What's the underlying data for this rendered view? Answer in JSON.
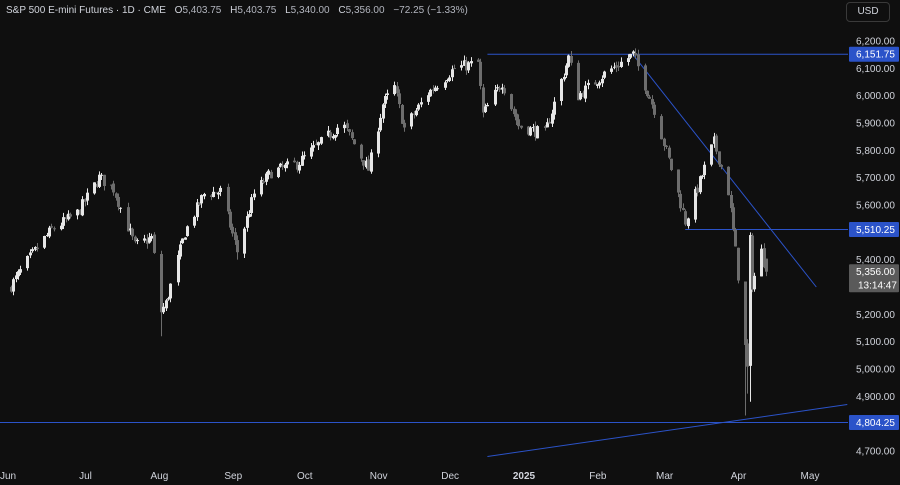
{
  "header": {
    "instrument": "S&P 500 E-mini Futures · 1D · CME",
    "o_label": "O",
    "o_value": "5,403.75",
    "h_label": "H",
    "h_value": "5,403.75",
    "l_label": "L",
    "l_value": "5,340.00",
    "c_label": "C",
    "c_value": "5,356.00",
    "change": "−72.25 (−1.33%)"
  },
  "currency_button": "USD",
  "countdown": "13:14:47",
  "colors": {
    "background": "#0f0f0f",
    "candle_up": "#e6e6e6",
    "candle_down": "#6d6d6d",
    "line": "#2b53c9",
    "label_blue": "#2b53c9",
    "label_gray": "#5a5a5a"
  },
  "chart_data": {
    "type": "candlestick",
    "symbol": "S&P 500 E-mini Futures",
    "timeframe": "1D",
    "exchange": "CME",
    "x_tick_labels": [
      "Jun",
      "Jul",
      "Aug",
      "Sep",
      "Oct",
      "Nov",
      "Dec",
      "2025",
      "Feb",
      "Mar",
      "Apr",
      "May"
    ],
    "y_tick_labels": [
      "6,200.00",
      "6,100.00",
      "6,000.00",
      "5,900.00",
      "5,800.00",
      "5,700.00",
      "5,600.00",
      "5,400.00",
      "5,200.00",
      "5,100.00",
      "5,000.00",
      "4,900.00",
      "4,700.00"
    ],
    "y_tick_values": [
      6200,
      6100,
      6000,
      5900,
      5800,
      5700,
      5600,
      5400,
      5200,
      5100,
      5000,
      4900,
      4700
    ],
    "ylim": [
      4665,
      6300
    ],
    "horizontal_levels": [
      {
        "value": 6151.75,
        "label": "6,151.75"
      },
      {
        "value": 5510.25,
        "label": "5,510.25"
      },
      {
        "value": 4804.25,
        "label": "4,804.25"
      }
    ],
    "last_price": {
      "value": 5356.0,
      "label": "5,356.00"
    },
    "trendlines": [
      {
        "from": {
          "date": "2025-02-19",
          "price": 6151
        },
        "to": {
          "date": "2025-05-07",
          "price": 5300
        }
      },
      {
        "from": {
          "date": "2024-12-20",
          "price": 4680
        },
        "to": {
          "date": "2025-05-20",
          "price": 4870
        }
      }
    ],
    "anchors": [
      {
        "date": "2024-06-01",
        "close": 5280
      },
      {
        "date": "2024-06-12",
        "close": 5420
      },
      {
        "date": "2024-06-20",
        "close": 5510
      },
      {
        "date": "2024-07-01",
        "close": 5570
      },
      {
        "date": "2024-07-10",
        "close": 5700
      },
      {
        "date": "2024-07-16",
        "close": 5660
      },
      {
        "date": "2024-07-25",
        "close": 5450
      },
      {
        "date": "2024-08-01",
        "close": 5480
      },
      {
        "date": "2024-08-05",
        "close": 5210
      },
      {
        "date": "2024-08-07",
        "close": 5240
      },
      {
        "date": "2024-08-15",
        "close": 5500
      },
      {
        "date": "2024-08-23",
        "close": 5640
      },
      {
        "date": "2024-08-30",
        "close": 5650
      },
      {
        "date": "2024-09-06",
        "close": 5430
      },
      {
        "date": "2024-09-13",
        "close": 5640
      },
      {
        "date": "2024-09-20",
        "close": 5720
      },
      {
        "date": "2024-10-01",
        "close": 5750
      },
      {
        "date": "2024-10-10",
        "close": 5820
      },
      {
        "date": "2024-10-20",
        "close": 5900
      },
      {
        "date": "2024-10-31",
        "close": 5730
      },
      {
        "date": "2024-11-06",
        "close": 5970
      },
      {
        "date": "2024-11-11",
        "close": 6030
      },
      {
        "date": "2024-11-15",
        "close": 5880
      },
      {
        "date": "2024-11-25",
        "close": 6010
      },
      {
        "date": "2024-12-06",
        "close": 6100
      },
      {
        "date": "2024-12-16",
        "close": 6120
      },
      {
        "date": "2024-12-18",
        "close": 5930
      },
      {
        "date": "2024-12-26",
        "close": 6050
      },
      {
        "date": "2025-01-02",
        "close": 5890
      },
      {
        "date": "2025-01-13",
        "close": 5860
      },
      {
        "date": "2025-01-23",
        "close": 6140
      },
      {
        "date": "2025-01-27",
        "close": 6000
      },
      {
        "date": "2025-02-07",
        "close": 6080
      },
      {
        "date": "2025-02-19",
        "close": 6150
      },
      {
        "date": "2025-02-28",
        "close": 5950
      },
      {
        "date": "2025-03-10",
        "close": 5640
      },
      {
        "date": "2025-03-13",
        "close": 5540
      },
      {
        "date": "2025-03-20",
        "close": 5710
      },
      {
        "date": "2025-03-25",
        "close": 5830
      },
      {
        "date": "2025-03-31",
        "close": 5650
      },
      {
        "date": "2025-04-03",
        "close": 5430
      },
      {
        "date": "2025-04-07",
        "close": 5080
      },
      {
        "date": "2025-04-08",
        "close": 5000
      },
      {
        "date": "2025-04-09",
        "close": 5470
      },
      {
        "date": "2025-04-10",
        "close": 5310
      },
      {
        "date": "2025-04-14",
        "close": 5430
      },
      {
        "date": "2025-04-16",
        "close": 5356
      }
    ],
    "last_bar": {
      "date": "2025-04-16",
      "open": 5403.75,
      "high": 5403.75,
      "low": 5340.0,
      "close": 5356.0
    }
  }
}
